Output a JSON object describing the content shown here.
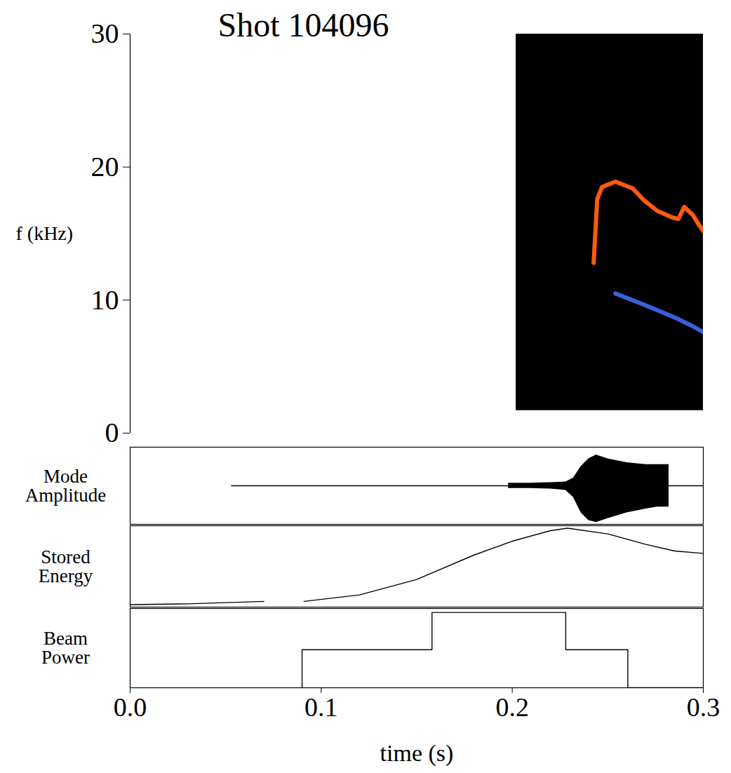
{
  "chart_data": [
    {
      "type": "spectrogram",
      "title": "Shot 104096",
      "ylabel": "f (kHz)",
      "xlim": [
        0,
        0.3
      ],
      "ylim": [
        0,
        30
      ],
      "yticks": [
        0,
        10,
        20,
        30
      ],
      "tick_labels": "y",
      "image": {
        "x": [
          0.202,
          0.3
        ],
        "y": [
          1.7,
          30
        ],
        "color": "#000000"
      },
      "series": [
        {
          "type": "line",
          "color": "#ff5a10",
          "x": [
            0.2426,
            0.2445,
            0.247,
            0.254,
            0.263,
            0.269,
            0.276,
            0.284,
            0.287,
            0.29,
            0.2945,
            0.298,
            0.3
          ],
          "values": [
            12.8,
            17.6,
            18.5,
            18.9,
            18.4,
            17.5,
            16.7,
            16.2,
            16.1,
            17.0,
            16.4,
            15.6,
            15.2
          ]
        },
        {
          "type": "line",
          "color": "#3a5fd8",
          "x": [
            0.254,
            0.27,
            0.285,
            0.295,
            0.3
          ],
          "values": [
            10.5,
            9.6,
            8.7,
            8.0,
            7.6
          ]
        }
      ]
    },
    {
      "type": "line",
      "ylabel": "Mode Amplitude",
      "xlim": [
        0,
        0.3
      ],
      "ylim": [
        -1,
        1
      ],
      "tick_labels": false,
      "series": [
        {
          "type": "line",
          "color": "#000000",
          "x": [
            0.053,
            0.3
          ],
          "values": [
            0,
            0
          ]
        },
        {
          "type": "area",
          "color": "#000000",
          "x": [
            0.198,
            0.21,
            0.22,
            0.228,
            0.232,
            0.236,
            0.24,
            0.244,
            0.25,
            0.26,
            0.27,
            0.276,
            0.282
          ],
          "upper": [
            0.07,
            0.07,
            0.08,
            0.1,
            0.2,
            0.5,
            0.7,
            0.8,
            0.7,
            0.6,
            0.55,
            0.55,
            0.55
          ],
          "lower": [
            -0.07,
            -0.07,
            -0.08,
            -0.12,
            -0.3,
            -0.7,
            -0.9,
            -0.95,
            -0.85,
            -0.7,
            -0.6,
            -0.55,
            -0.55
          ]
        }
      ]
    },
    {
      "type": "line",
      "ylabel": "Stored Energy",
      "xlim": [
        0,
        0.3
      ],
      "ylim": [
        0,
        1
      ],
      "tick_labels": false,
      "color": "#000000",
      "x": [
        0,
        0.03,
        0.07,
        0.08,
        0.091,
        0.12,
        0.15,
        0.18,
        0.2,
        0.22,
        0.229,
        0.25,
        0.27,
        0.285,
        0.3
      ],
      "values": [
        0.03,
        0.04,
        0.07,
        null,
        0.07,
        0.15,
        0.34,
        0.64,
        0.81,
        0.94,
        0.97,
        0.9,
        0.77,
        0.69,
        0.66
      ]
    },
    {
      "type": "step",
      "ylabel": "Beam Power",
      "xlabel": "time (s)",
      "xlim": [
        0,
        0.3
      ],
      "xticks": [
        {
          "value": 0,
          "label": "0.0"
        },
        0.1,
        0.2,
        0.3
      ],
      "ylim": [
        0,
        1
      ],
      "tick_labels": "x",
      "color": "#000000",
      "x": [
        0.09,
        0.09,
        0.158,
        0.228,
        0.2605,
        0.3
      ],
      "values": [
        0,
        0.48,
        0.95,
        0.48,
        0,
        0
      ]
    }
  ]
}
